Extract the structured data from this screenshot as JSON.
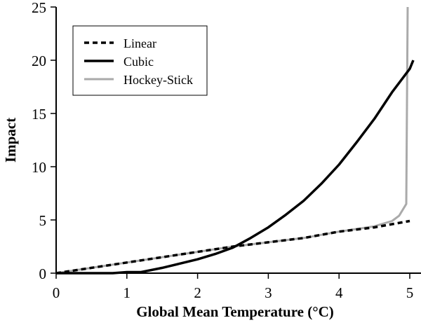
{
  "chart_data": {
    "type": "line",
    "title": "",
    "xlabel": "Global Mean Temperature (°C)",
    "ylabel": "Impact",
    "xlim": [
      0,
      5.1
    ],
    "ylim": [
      0,
      25
    ],
    "xticks": [
      "0",
      "1",
      "2",
      "3",
      "4",
      "5"
    ],
    "yticks": [
      "0",
      "5",
      "10",
      "15",
      "20",
      "25"
    ],
    "grid": false,
    "legend_position": "top-left",
    "series": [
      {
        "name": "Linear",
        "style": "dashed",
        "color": "#000000",
        "x": [
          0,
          0.5,
          1,
          1.5,
          2,
          2.5,
          3,
          3.5,
          4,
          4.5,
          5
        ],
        "y": [
          0,
          0.5,
          1,
          1.5,
          2,
          2.5,
          2.9,
          3.3,
          3.9,
          4.3,
          4.9
        ]
      },
      {
        "name": "Cubic",
        "style": "solid",
        "color": "#000000",
        "x": [
          0,
          0.8,
          1,
          1.2,
          1.5,
          1.75,
          2,
          2.25,
          2.5,
          2.75,
          3,
          3.25,
          3.5,
          3.75,
          4,
          4.25,
          4.5,
          4.75,
          5,
          5.05
        ],
        "y": [
          0,
          0,
          0.1,
          0.1,
          0.5,
          0.9,
          1.3,
          1.8,
          2.4,
          3.3,
          4.3,
          5.5,
          6.8,
          8.4,
          10.2,
          12.3,
          14.5,
          17.0,
          19.2,
          20.0
        ]
      },
      {
        "name": "Hockey-Stick",
        "style": "solid",
        "color": "#aaaaaa",
        "x": [
          0,
          0.5,
          1,
          1.5,
          2,
          2.5,
          3,
          3.5,
          4,
          4.5,
          4.75,
          4.85,
          4.95,
          4.97
        ],
        "y": [
          0,
          0.5,
          1,
          1.5,
          2,
          2.5,
          2.9,
          3.3,
          3.9,
          4.4,
          4.9,
          5.4,
          6.5,
          25
        ]
      }
    ]
  }
}
